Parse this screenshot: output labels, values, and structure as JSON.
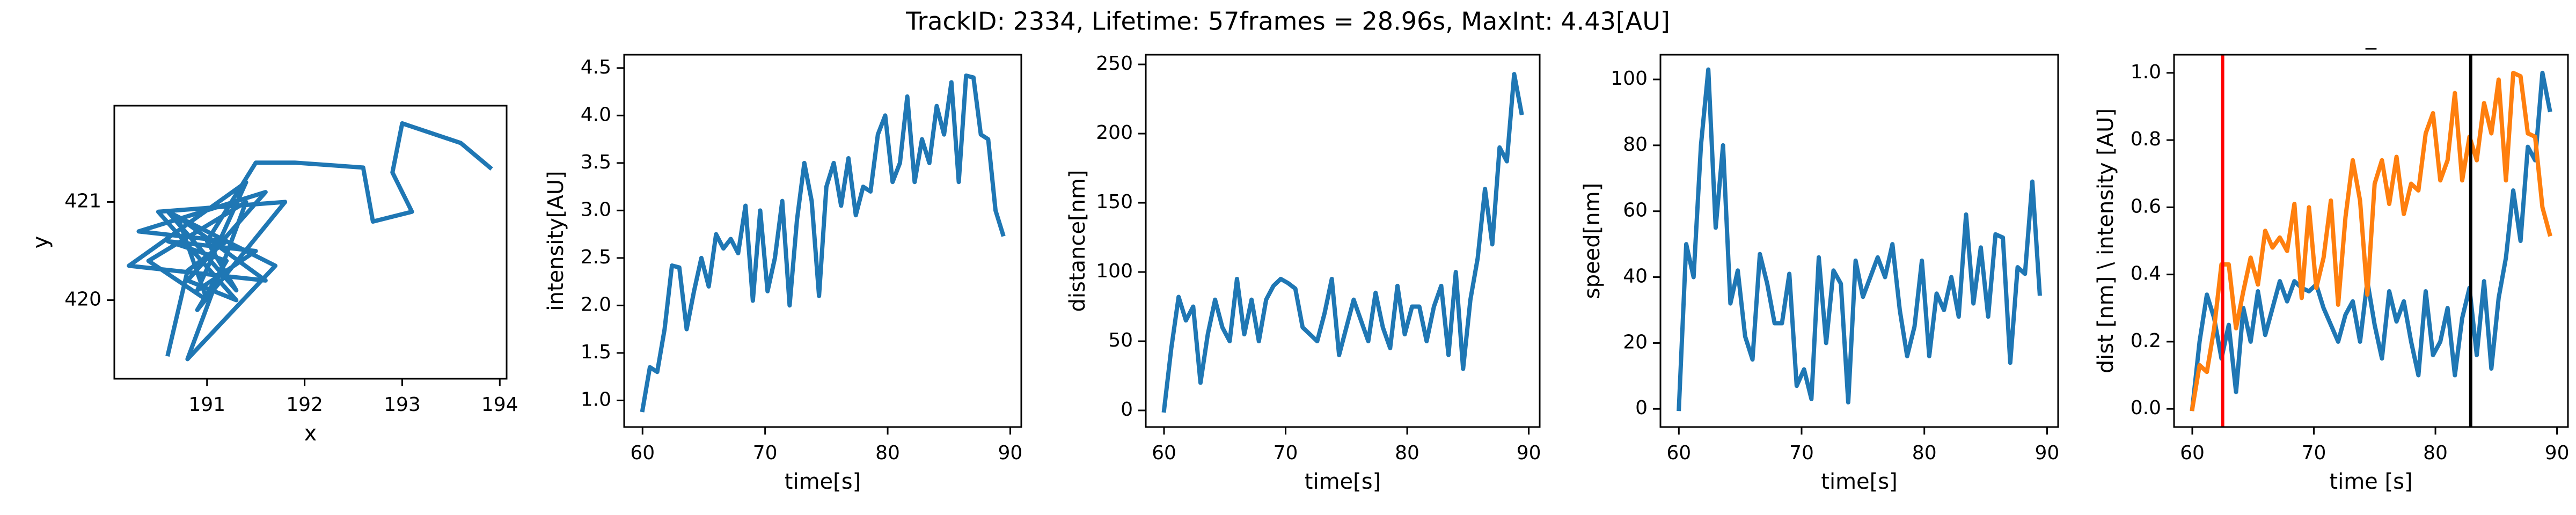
{
  "suptitle": "TrackID: 2334, Lifetime: 57frames = 28.96s, MaxInt: 4.43[AU]",
  "chart_data": [
    {
      "type": "line",
      "xlabel": "x",
      "ylabel": "y",
      "x": [
        190.6,
        190.8,
        191.2,
        190.3,
        191.6,
        190.8,
        191.3,
        190.5,
        191.8,
        190.9,
        191.2,
        190.6,
        191.5,
        190.9,
        191.4,
        190.2,
        191.6,
        190.7,
        191.0,
        190.4,
        191.4,
        190.8,
        191.7,
        190.6,
        191.3,
        191.0,
        191.5,
        191.9,
        192.6,
        192.7,
        193.1,
        192.9,
        193.0,
        193.6,
        193.9
      ],
      "series": [
        {
          "color": "#1f77b4",
          "values": [
            419.45,
            420.3,
            420.6,
            420.7,
            421.1,
            420.2,
            420.0,
            420.9,
            421.0,
            419.9,
            420.4,
            420.6,
            420.5,
            420.1,
            421.2,
            420.35,
            420.2,
            420.85,
            420.0,
            420.4,
            421.0,
            419.4,
            420.35,
            420.9,
            420.1,
            420.6,
            421.4,
            421.4,
            421.35,
            420.8,
            420.9,
            421.3,
            421.8,
            421.6,
            421.35
          ]
        }
      ],
      "xlim": [
        190.05,
        194.07
      ],
      "ylim": [
        419.2,
        421.98
      ],
      "xticks": [
        191,
        192,
        193,
        194
      ],
      "yticks": [
        420,
        421
      ]
    },
    {
      "type": "line",
      "xlabel": "time[s]",
      "ylabel": "intensity[AU]",
      "x": [
        60.0,
        60.6,
        61.2,
        61.8,
        62.4,
        63.0,
        63.6,
        64.2,
        64.8,
        65.4,
        66.0,
        66.6,
        67.2,
        67.8,
        68.4,
        69.0,
        69.6,
        70.2,
        70.8,
        71.4,
        72.0,
        72.6,
        73.2,
        73.8,
        74.4,
        75.0,
        75.6,
        76.2,
        76.8,
        77.4,
        78.0,
        78.6,
        79.2,
        79.8,
        80.4,
        81.0,
        81.6,
        82.2,
        82.8,
        83.4,
        84.0,
        84.6,
        85.2,
        85.8,
        86.4,
        87.0,
        87.6,
        88.2,
        88.8,
        89.4
      ],
      "series": [
        {
          "color": "#1f77b4",
          "values": [
            0.9,
            1.35,
            1.3,
            1.75,
            2.42,
            2.4,
            1.75,
            2.15,
            2.5,
            2.2,
            2.75,
            2.6,
            2.7,
            2.55,
            3.05,
            2.05,
            3.0,
            2.15,
            2.5,
            3.1,
            2.0,
            2.9,
            3.5,
            3.1,
            2.1,
            3.25,
            3.5,
            3.05,
            3.55,
            2.95,
            3.25,
            3.2,
            3.8,
            4.0,
            3.3,
            3.5,
            4.2,
            3.3,
            3.75,
            3.5,
            4.1,
            3.8,
            4.35,
            3.3,
            4.42,
            4.4,
            3.8,
            3.75,
            3.0,
            2.75
          ]
        }
      ],
      "xlim": [
        58.5,
        90.9
      ],
      "ylim": [
        0.72,
        4.64
      ],
      "xticks": [
        60,
        70,
        80,
        90
      ],
      "yticks": [
        {
          "value": 1,
          "label": "1.0"
        },
        1.5,
        {
          "value": 2,
          "label": "2.0"
        },
        2.5,
        {
          "value": 3,
          "label": "3.0"
        },
        3.5,
        {
          "value": 4,
          "label": "4.0"
        },
        4.5
      ]
    },
    {
      "type": "line",
      "xlabel": "time[s]",
      "ylabel": "distance[nm]",
      "x": [
        60.0,
        60.6,
        61.2,
        61.8,
        62.4,
        63.0,
        63.6,
        64.2,
        64.8,
        65.4,
        66.0,
        66.6,
        67.2,
        67.8,
        68.4,
        69.0,
        69.6,
        70.2,
        70.8,
        71.4,
        72.0,
        72.6,
        73.2,
        73.8,
        74.4,
        75.0,
        75.6,
        76.2,
        76.8,
        77.4,
        78.0,
        78.6,
        79.2,
        79.8,
        80.4,
        81.0,
        81.6,
        82.2,
        82.8,
        83.4,
        84.0,
        84.6,
        85.2,
        85.8,
        86.4,
        87.0,
        87.6,
        88.2,
        88.8,
        89.4
      ],
      "series": [
        {
          "color": "#1f77b4",
          "values": [
            0,
            45,
            82,
            65,
            75,
            20,
            55,
            80,
            60,
            50,
            95,
            55,
            80,
            50,
            80,
            90,
            95,
            92,
            88,
            60,
            55,
            50,
            70,
            95,
            40,
            60,
            80,
            65,
            50,
            85,
            60,
            45,
            90,
            55,
            75,
            75,
            50,
            75,
            90,
            40,
            100,
            30,
            80,
            110,
            160,
            120,
            190,
            180,
            243,
            215
          ]
        }
      ],
      "xlim": [
        58.5,
        90.9
      ],
      "ylim": [
        -12,
        257
      ],
      "xticks": [
        60,
        70,
        80,
        90
      ],
      "yticks": [
        0,
        50,
        100,
        150,
        200,
        250
      ]
    },
    {
      "type": "line",
      "xlabel": "time[s]",
      "ylabel": "speed[nm]",
      "x": [
        60.0,
        60.6,
        61.2,
        61.8,
        62.4,
        63.0,
        63.6,
        64.2,
        64.8,
        65.4,
        66.0,
        66.6,
        67.2,
        67.8,
        68.4,
        69.0,
        69.6,
        70.2,
        70.8,
        71.4,
        72.0,
        72.6,
        73.2,
        73.8,
        74.4,
        75.0,
        75.6,
        76.2,
        76.8,
        77.4,
        78.0,
        78.6,
        79.2,
        79.8,
        80.4,
        81.0,
        81.6,
        82.2,
        82.8,
        83.4,
        84.0,
        84.6,
        85.2,
        85.8,
        86.4,
        87.0,
        87.6,
        88.2,
        88.8,
        89.4
      ],
      "series": [
        {
          "color": "#1f77b4",
          "values": [
            0,
            50,
            40,
            80,
            103,
            55,
            80,
            32,
            42,
            22,
            15,
            47,
            38,
            26,
            26,
            41,
            7,
            12,
            3,
            46,
            20,
            42,
            38,
            2,
            45,
            34,
            40,
            46,
            40,
            50,
            30,
            16,
            25,
            45,
            16,
            35,
            30,
            40,
            28,
            59,
            32,
            49,
            28,
            53,
            52,
            14,
            43,
            41,
            69,
            35
          ]
        }
      ],
      "xlim": [
        58.5,
        90.9
      ],
      "ylim": [
        -5.5,
        107.5
      ],
      "xticks": [
        60,
        70,
        80,
        90
      ],
      "yticks": [
        0,
        20,
        40,
        60,
        80,
        100
      ]
    },
    {
      "type": "line",
      "title": "_",
      "xlabel": "time [s]",
      "ylabel": "dist [nm] \\ intensity [AU]",
      "x": [
        60.0,
        60.6,
        61.2,
        61.8,
        62.4,
        63.0,
        63.6,
        64.2,
        64.8,
        65.4,
        66.0,
        66.6,
        67.2,
        67.8,
        68.4,
        69.0,
        69.6,
        70.2,
        70.8,
        71.4,
        72.0,
        72.6,
        73.2,
        73.8,
        74.4,
        75.0,
        75.6,
        76.2,
        76.8,
        77.4,
        78.0,
        78.6,
        79.2,
        79.8,
        80.4,
        81.0,
        81.6,
        82.2,
        82.8,
        83.4,
        84.0,
        84.6,
        85.2,
        85.8,
        86.4,
        87.0,
        87.6,
        88.2,
        88.8,
        89.4
      ],
      "series": [
        {
          "color": "#1f77b4",
          "values": [
            0,
            0.2,
            0.34,
            0.27,
            0.15,
            0.25,
            0.05,
            0.3,
            0.2,
            0.35,
            0.22,
            0.3,
            0.38,
            0.32,
            0.38,
            0.36,
            0.35,
            0.37,
            0.3,
            0.25,
            0.2,
            0.28,
            0.32,
            0.2,
            0.38,
            0.25,
            0.15,
            0.35,
            0.26,
            0.32,
            0.2,
            0.1,
            0.35,
            0.16,
            0.2,
            0.3,
            0.1,
            0.27,
            0.36,
            0.16,
            0.38,
            0.12,
            0.33,
            0.45,
            0.65,
            0.5,
            0.78,
            0.74,
            1.0,
            0.89
          ]
        },
        {
          "color": "#ff7f0e",
          "values": [
            0,
            0.13,
            0.11,
            0.24,
            0.43,
            0.43,
            0.24,
            0.35,
            0.45,
            0.37,
            0.53,
            0.48,
            0.51,
            0.47,
            0.61,
            0.33,
            0.6,
            0.36,
            0.45,
            0.62,
            0.31,
            0.57,
            0.74,
            0.62,
            0.34,
            0.67,
            0.74,
            0.61,
            0.75,
            0.58,
            0.67,
            0.65,
            0.82,
            0.88,
            0.68,
            0.74,
            0.94,
            0.68,
            0.81,
            0.74,
            0.91,
            0.82,
            0.98,
            0.68,
            1.0,
            0.99,
            0.82,
            0.81,
            0.6,
            0.52
          ]
        }
      ],
      "vlines": [
        {
          "x": 62.5,
          "color": "#ff0000"
        },
        {
          "x": 82.9,
          "color": "#000000"
        }
      ],
      "xlim": [
        58.5,
        90.9
      ],
      "ylim": [
        -0.054,
        1.054
      ],
      "xticks": [
        60,
        70,
        80,
        90
      ],
      "yticks": [
        {
          "value": 0,
          "label": "0.0"
        },
        0.2,
        0.4,
        0.6,
        0.8,
        {
          "value": 1,
          "label": "1.0"
        }
      ]
    }
  ]
}
